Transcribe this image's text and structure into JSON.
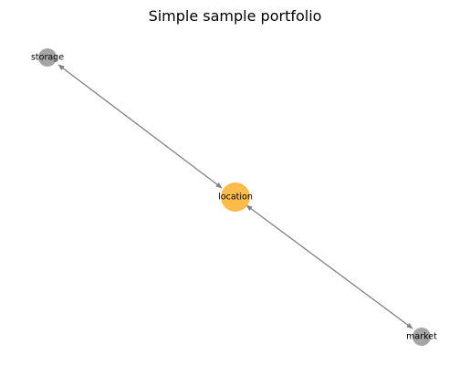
{
  "title": "Simple sample portfolio",
  "colors": {
    "center_node": "#ffb02e",
    "leaf_node": "#a0a0a0",
    "edge": "#808080",
    "background": "#ffffff"
  },
  "nodes": [
    {
      "id": "storage",
      "label": "storage",
      "role": "leaf"
    },
    {
      "id": "location",
      "label": "location",
      "role": "center"
    },
    {
      "id": "market",
      "label": "market",
      "role": "leaf"
    }
  ],
  "edges": [
    {
      "source": "location",
      "target": "storage",
      "direction": "both"
    },
    {
      "source": "location",
      "target": "market",
      "direction": "both"
    }
  ]
}
